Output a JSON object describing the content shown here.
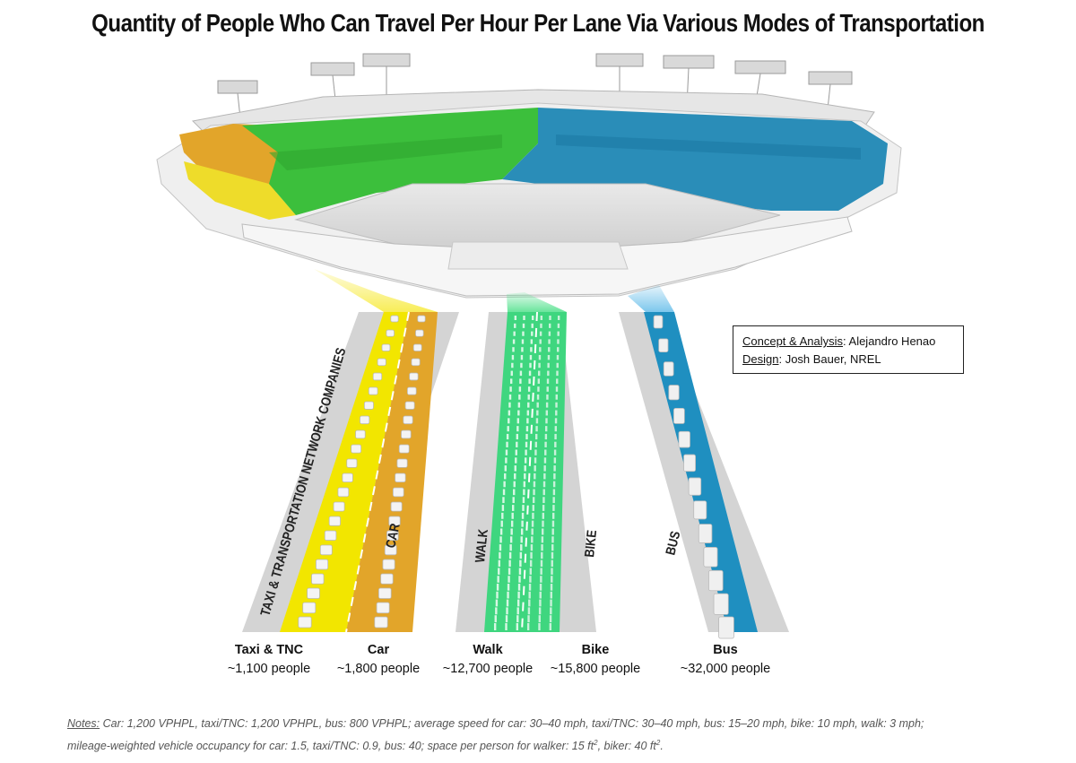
{
  "title": "Quantity of People Who Can Travel Per Hour Per Lane Via Various Modes of Transportation",
  "credits": {
    "concept_key": "Concept & Analysis",
    "concept_val": ": Alejandro Henao",
    "design_key": "Design",
    "design_val": ": Josh Bauer, NREL"
  },
  "lane_labels": {
    "taxi": "TAXI & TRANSPORTATION NETWORK COMPANIES",
    "car": "CAR",
    "walk": "WALK",
    "bike": "BIKE",
    "bus": "BUS"
  },
  "modes": [
    {
      "name": "Taxi & TNC",
      "value": "~1,100 people"
    },
    {
      "name": "Car",
      "value": "~1,800 people"
    },
    {
      "name": "Walk",
      "value": "~12,700 people"
    },
    {
      "name": "Bike",
      "value": "~15,800 people"
    },
    {
      "name": "Bus",
      "value": "~32,000 people"
    }
  ],
  "notes": {
    "label": "Notes:",
    "line1": " Car: 1,200 VPHPL, taxi/TNC: 1,200 VPHPL, bus: 800 VPHPL; average speed for car: 30–40 mph, taxi/TNC: 30–40 mph, bus: 15–20 mph, bike: 10 mph, walk: 3 mph;",
    "line2a": "mileage-weighted vehicle occupancy for car: 1.5, taxi/TNC: 0.9, bus: 40; space per person for walker: 15 ft",
    "line2b": "2",
    "line2c": ", biker: 40 ft",
    "line2d": "2",
    "line2e": "."
  },
  "colors": {
    "taxi": "#f2e600",
    "car": "#e2a52a",
    "walk": "#3fd67f",
    "bike": "#2fcf7a",
    "bus": "#1f8fc0",
    "stadium_green": "#3cbf3c",
    "stadium_blue": "#2a8db8",
    "stadium_yellow": "#eedc2a",
    "stadium_orange": "#e2a52a"
  }
}
